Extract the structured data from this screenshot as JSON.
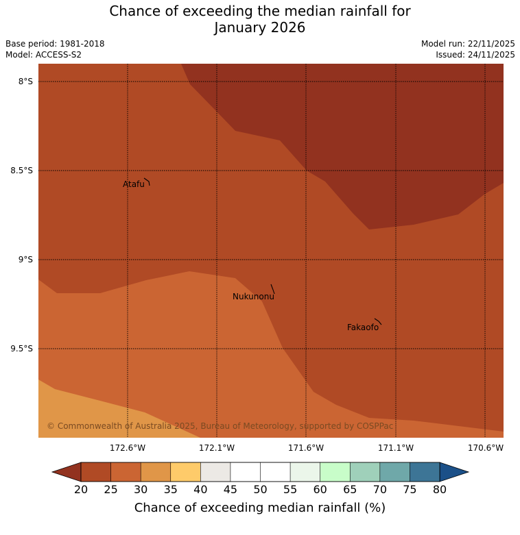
{
  "header": {
    "title_line1": "Chance of exceeding the median rainfall for",
    "title_line2": "January 2026",
    "base_period": "Base period: 1981-2018",
    "model": "Model: ACCESS-S2",
    "model_run": "Model run: 22/11/2025",
    "issued": "Issued: 24/11/2025"
  },
  "map": {
    "lat_labels": [
      "8°S",
      "8.5°S",
      "9°S",
      "9.5°S"
    ],
    "lon_labels": [
      "172.6°W",
      "172.1°W",
      "171.6°W",
      "171.1°W",
      "170.6°W"
    ],
    "places": [
      {
        "name": "Atafu"
      },
      {
        "name": "Nukunonu"
      },
      {
        "name": "Fakaofo"
      }
    ],
    "copyright": "© Commonwealth of Australia 2025, Bureau of Meteorology, supported by COSPPac",
    "zones": [
      {
        "name": "15-20%",
        "color": "#92321f"
      },
      {
        "name": "20-25%",
        "color": "#b04a25"
      },
      {
        "name": "25-30%",
        "color": "#cb6533"
      },
      {
        "name": "30-35%",
        "color": "#e09648"
      }
    ]
  },
  "colorbar": {
    "label": "Chance of exceeding median rainfall (%)",
    "ticks": [
      "20",
      "25",
      "30",
      "35",
      "40",
      "45",
      "50",
      "55",
      "60",
      "65",
      "70",
      "75",
      "80"
    ],
    "colors": [
      "#b04a25",
      "#cb6533",
      "#e09648",
      "#fecb6a",
      "#ece9e5",
      "#ffffff",
      "#ffffff",
      "#ebf6ea",
      "#c8fdc9",
      "#9fd0ba",
      "#6fa8a9",
      "#3d7596"
    ],
    "under_color": "#92321f",
    "over_color": "#1b5088"
  }
}
